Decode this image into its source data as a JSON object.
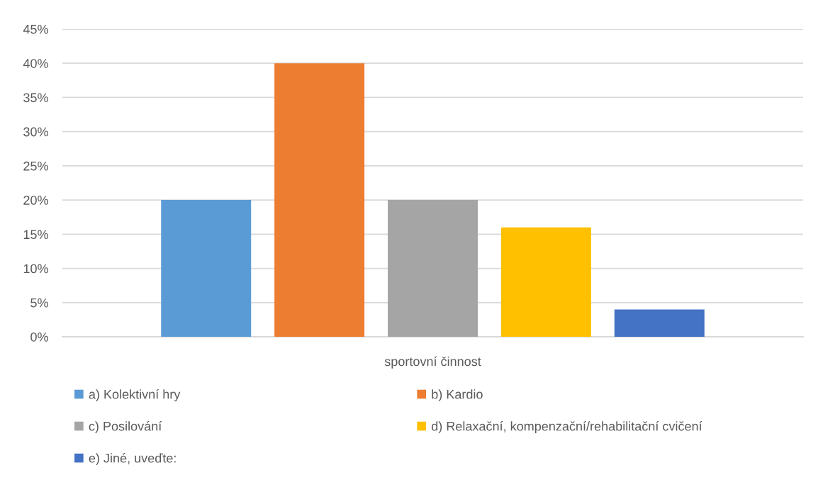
{
  "chart_data": {
    "type": "bar",
    "categories": [
      "sportovní činnost"
    ],
    "series": [
      {
        "name": "a) Kolektivní hry",
        "color": "#5b9bd5",
        "values": [
          20
        ]
      },
      {
        "name": "b) Kardio",
        "color": "#ed7d31",
        "values": [
          40
        ]
      },
      {
        "name": "c) Posilování",
        "color": "#a5a5a5",
        "values": [
          20
        ]
      },
      {
        "name": "d) Relaxační, kompenzační/rehabilitační cvičení",
        "color": "#ffc000",
        "values": [
          16
        ]
      },
      {
        "name": "e) Jiné, uveďte:",
        "color": "#4472c4",
        "values": [
          4
        ]
      }
    ],
    "ylim": [
      0,
      45
    ],
    "yticks": [
      {
        "value": 0,
        "label": "0%"
      },
      {
        "value": 5,
        "label": "5%"
      },
      {
        "value": 10,
        "label": "10%"
      },
      {
        "value": 15,
        "label": "15%"
      },
      {
        "value": 20,
        "label": "20%"
      },
      {
        "value": 25,
        "label": "25%"
      },
      {
        "value": 30,
        "label": "30%"
      },
      {
        "value": 35,
        "label": "35%"
      },
      {
        "value": 40,
        "label": "40%"
      },
      {
        "value": 45,
        "label": "45%"
      }
    ],
    "grid": "y",
    "legend": "bottom"
  }
}
